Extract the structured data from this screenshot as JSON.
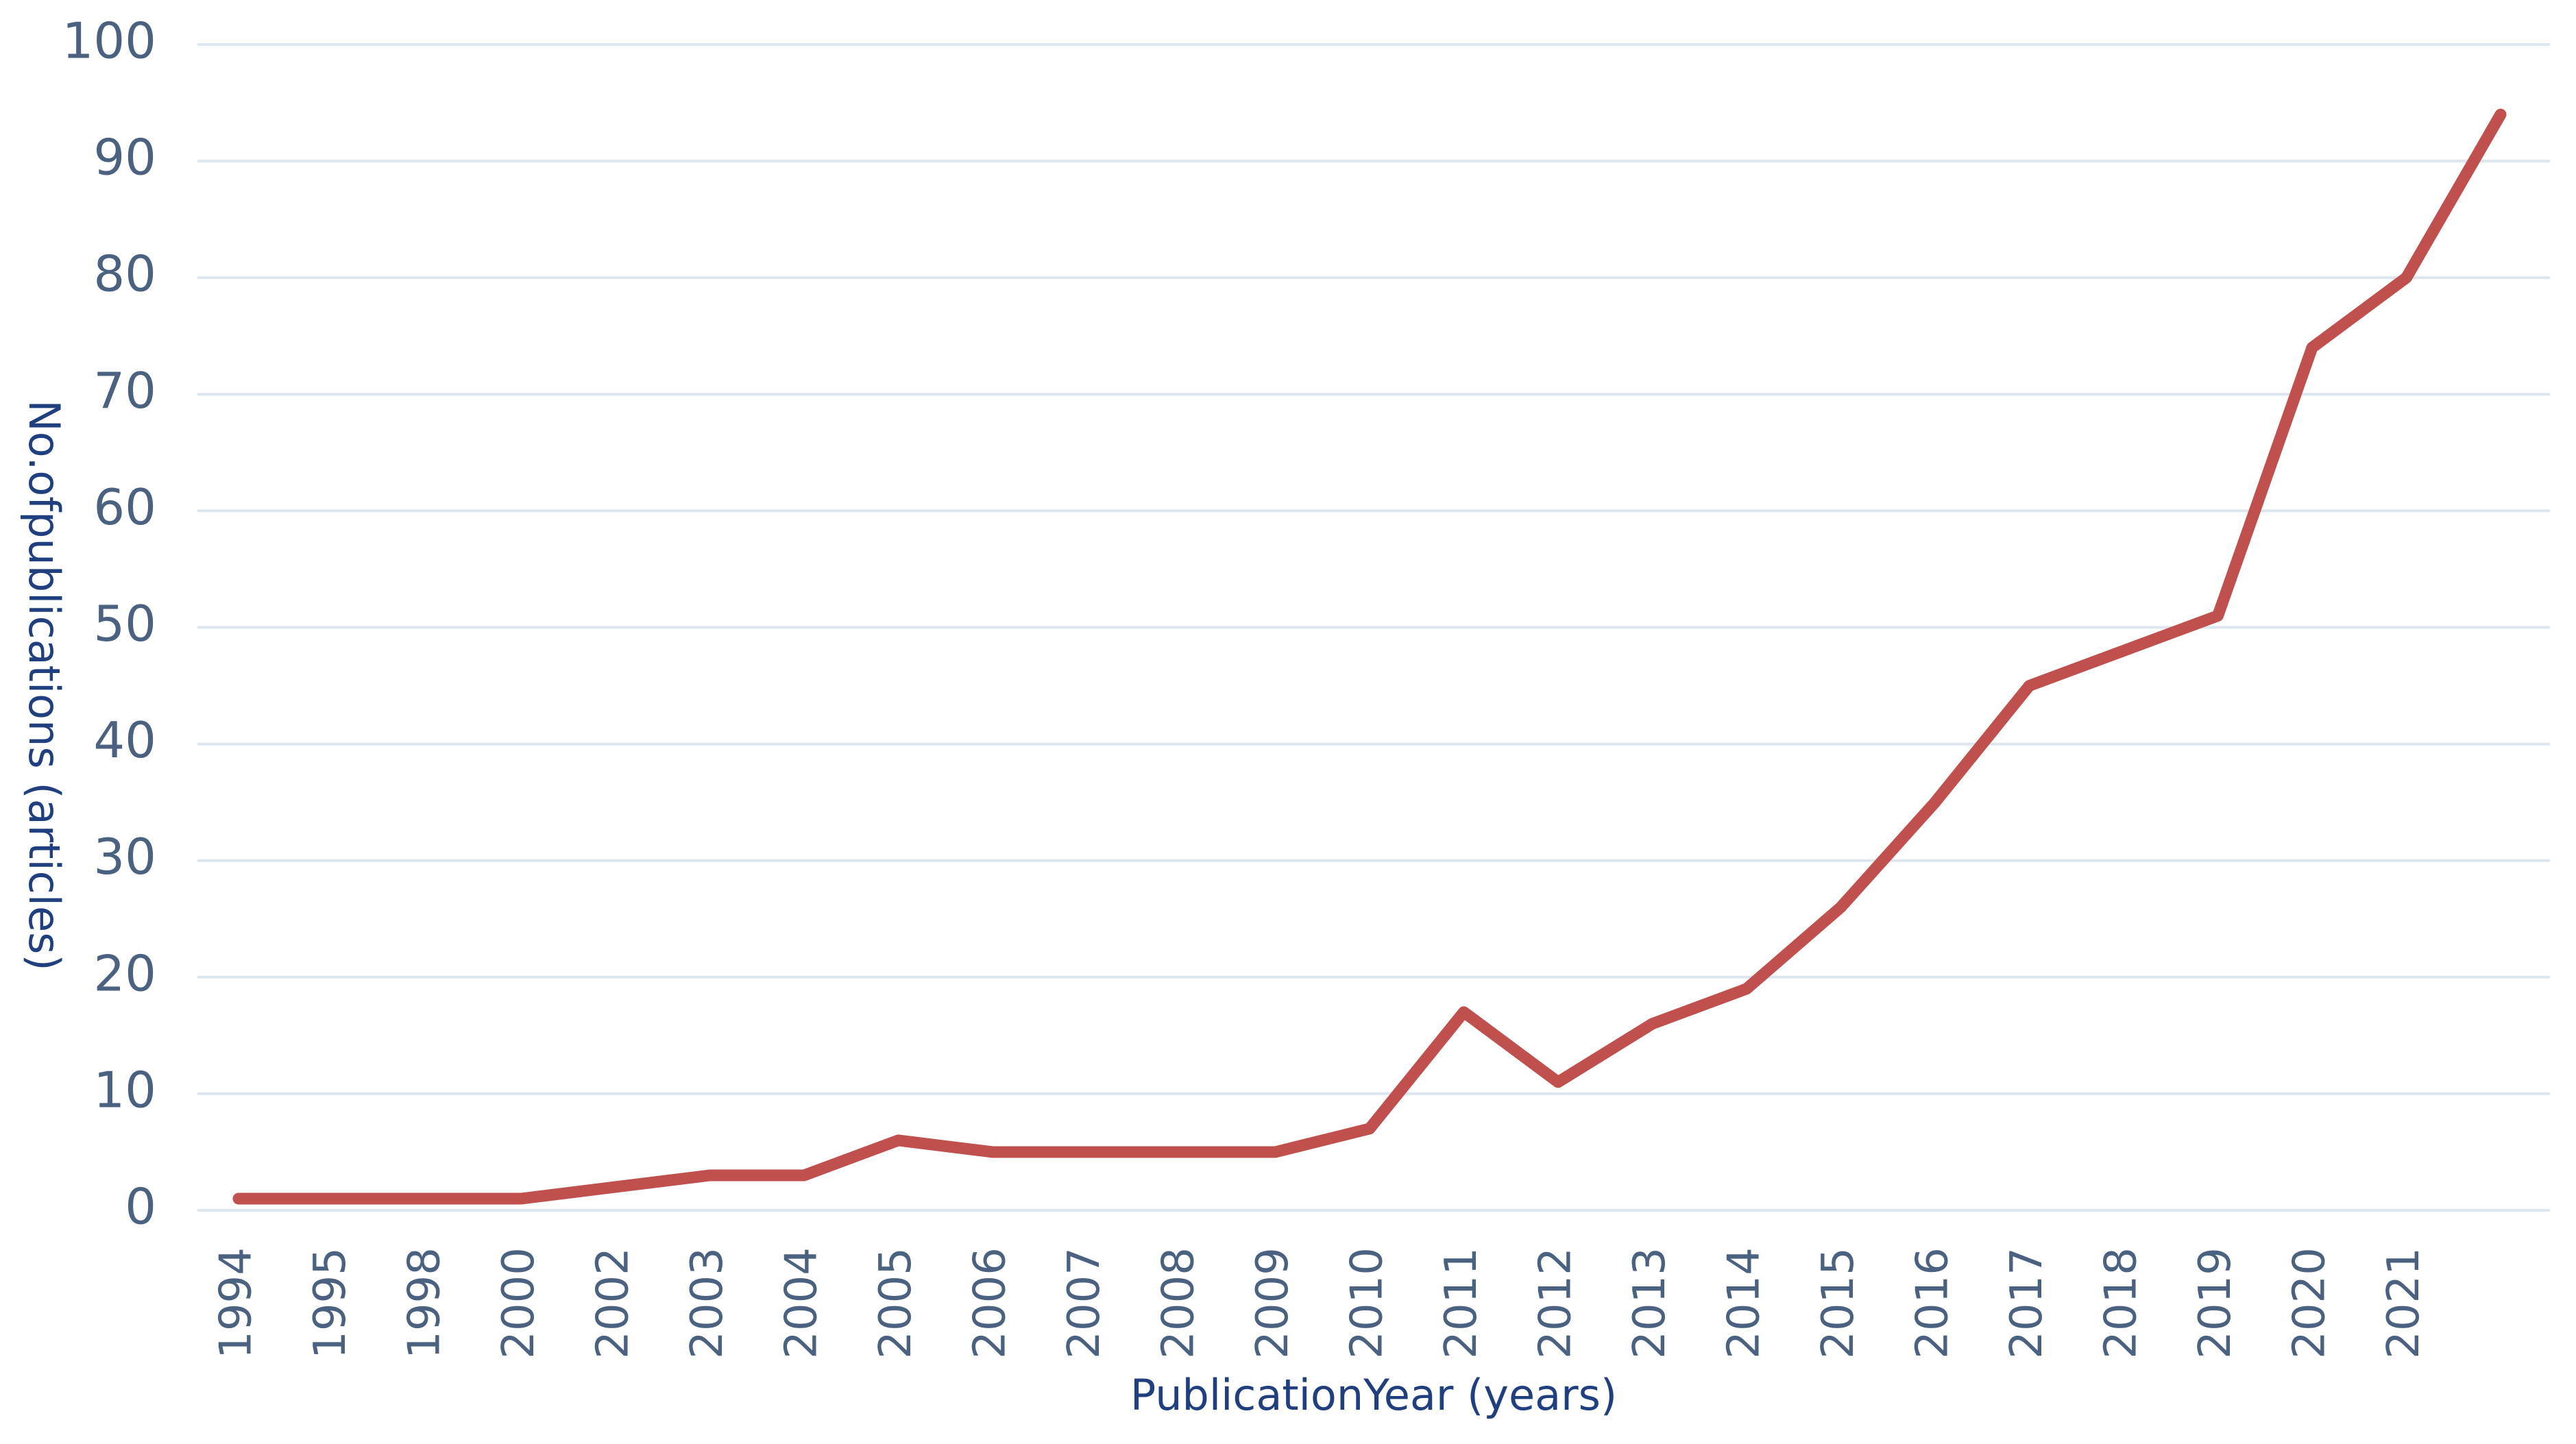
{
  "chart_data": {
    "type": "line",
    "xlabel": "PublicationYear  (years)",
    "ylabel": "No.ofpublications  (articles)",
    "categories": [
      "1994",
      "1995",
      "1998",
      "2000",
      "2002",
      "2003",
      "2004",
      "2005",
      "2006",
      "2007",
      "2008",
      "2009",
      "2010",
      "2011",
      "2012",
      "2013",
      "2014",
      "2015",
      "2016",
      "2017",
      "2018",
      "2019",
      "2020",
      "2021",
      null
    ],
    "values": [
      1,
      1,
      1,
      1,
      2,
      3,
      3,
      6,
      5,
      5,
      5,
      5,
      7,
      17,
      11,
      16,
      19,
      26,
      35,
      45,
      48,
      51,
      74,
      80,
      94
    ],
    "color": "#c0504d",
    "ylim": [
      0,
      100
    ],
    "yticks": [
      0,
      10,
      20,
      30,
      40,
      50,
      60,
      70,
      80,
      90,
      100
    ],
    "grid": true
  }
}
